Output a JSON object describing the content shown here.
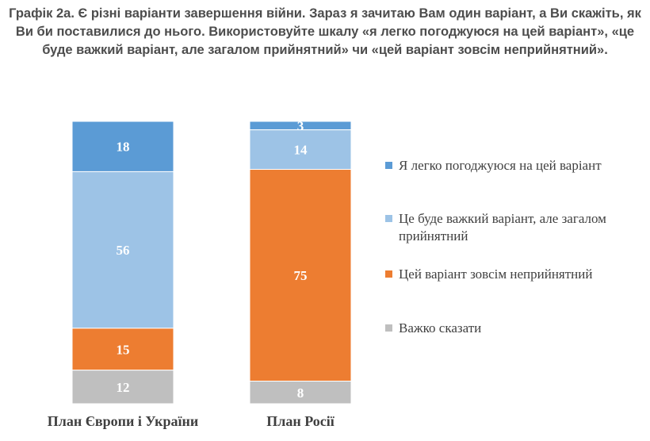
{
  "title": "Графік 2а. Є різні варіанти завершення війни. Зараз я зачитаю Вам один варіант, а Ви скажіть, як Ви би поставилися до нього. Використовуйте шкалу «я легко погоджуюся на цей варіант», «це буде важкий варіант, але загалом прийнятний» чи «цей варіант зовсім неприйнятний».",
  "chart_data": {
    "type": "bar",
    "stacked": true,
    "categories": [
      "План Європи і України",
      "План Росії"
    ],
    "series": [
      {
        "name": "Я легко погоджуюся на цей варіант",
        "values": [
          18,
          3
        ],
        "color": "#5b9bd5",
        "label_color": "#ffffff"
      },
      {
        "name": "Це буде важкий варіант, але загалом прийнятний",
        "values": [
          56,
          14
        ],
        "color": "#9dc3e6",
        "label_color": "#ffffff"
      },
      {
        "name": "Цей варіант зовсім неприйнятний",
        "values": [
          15,
          75
        ],
        "color": "#ed7d31",
        "label_color": "#ffffff"
      },
      {
        "name": "Важко сказати",
        "values": [
          12,
          8
        ],
        "color": "#bfbfbf",
        "label_color": "#ffffff"
      }
    ],
    "ylim": [
      0,
      100
    ],
    "grid": false,
    "legend_position": "right"
  }
}
